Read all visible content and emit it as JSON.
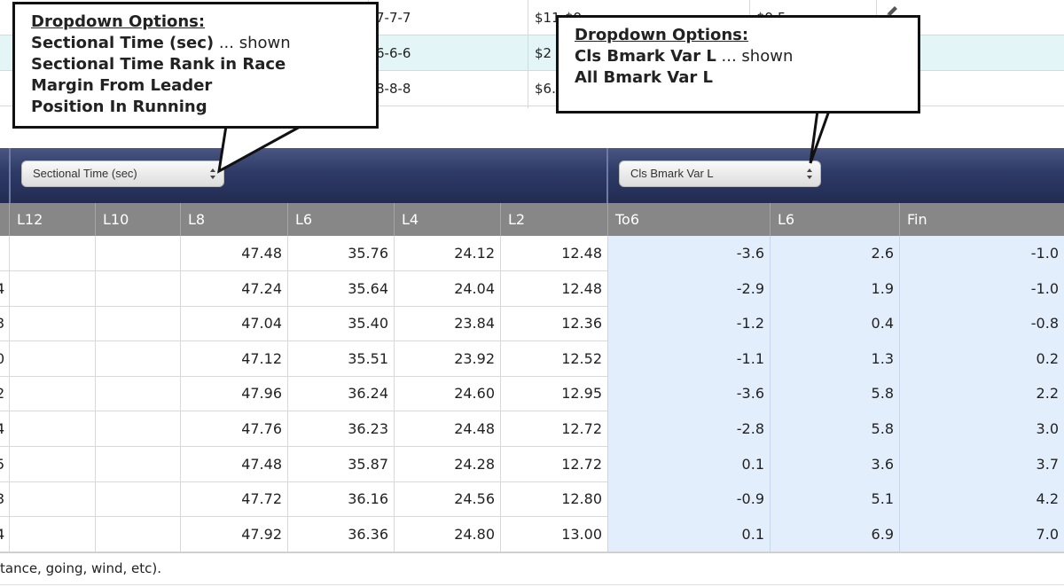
{
  "top_rows": [
    {
      "positions": "7-7-7",
      "odds": "$11-$9",
      "sp": "$9.5"
    },
    {
      "positions": "6-6-6",
      "odds": "$2",
      "sp": ""
    },
    {
      "positions": "8-8-8",
      "odds": "$6.",
      "sp": ""
    }
  ],
  "left_select": {
    "value": "Sectional Time (sec)"
  },
  "right_select": {
    "value": "Cls Bmark Var L"
  },
  "columns": [
    "L12",
    "L10",
    "L8",
    "L6",
    "L4",
    "L2",
    "To6",
    "L6",
    "Fin"
  ],
  "rows": [
    {
      "lead": "",
      "L12": "",
      "L10": "",
      "L8": "47.48",
      "L6": "35.76",
      "L4": "24.12",
      "L2": "12.48",
      "To6": "-3.6",
      "L6b": "2.6",
      "Fin": "-1.0"
    },
    {
      "lead": "4",
      "L12": "",
      "L10": "",
      "L8": "47.24",
      "L6": "35.64",
      "L4": "24.04",
      "L2": "12.48",
      "To6": "-2.9",
      "L6b": "1.9",
      "Fin": "-1.0"
    },
    {
      "lead": "3",
      "L12": "",
      "L10": "",
      "L8": "47.04",
      "L6": "35.40",
      "L4": "23.84",
      "L2": "12.36",
      "To6": "-1.2",
      "L6b": "0.4",
      "Fin": "-0.8"
    },
    {
      "lead": "0",
      "L12": "",
      "L10": "",
      "L8": "47.12",
      "L6": "35.51",
      "L4": "23.92",
      "L2": "12.52",
      "To6": "-1.1",
      "L6b": "1.3",
      "Fin": "0.2"
    },
    {
      "lead": "2",
      "L12": "",
      "L10": "",
      "L8": "47.96",
      "L6": "36.24",
      "L4": "24.60",
      "L2": "12.95",
      "To6": "-3.6",
      "L6b": "5.8",
      "Fin": "2.2"
    },
    {
      "lead": "4",
      "L12": "",
      "L10": "",
      "L8": "47.76",
      "L6": "36.23",
      "L4": "24.48",
      "L2": "12.72",
      "To6": "-2.8",
      "L6b": "5.8",
      "Fin": "3.0"
    },
    {
      "lead": "5",
      "L12": "",
      "L10": "",
      "L8": "47.48",
      "L6": "35.87",
      "L4": "24.28",
      "L2": "12.72",
      "To6": "0.1",
      "L6b": "3.6",
      "Fin": "3.7"
    },
    {
      "lead": "3",
      "L12": "",
      "L10": "",
      "L8": "47.72",
      "L6": "36.16",
      "L4": "24.56",
      "L2": "12.80",
      "To6": "-0.9",
      "L6b": "5.1",
      "Fin": "4.2"
    },
    {
      "lead": "4",
      "L12": "",
      "L10": "",
      "L8": "47.92",
      "L6": "36.36",
      "L4": "24.80",
      "L2": "13.00",
      "To6": "0.1",
      "L6b": "6.9",
      "Fin": "7.0"
    }
  ],
  "footnote": "tance, going, wind, etc).",
  "callout_left": {
    "title": "Dropdown Options:",
    "options": [
      {
        "text": "Sectional Time (sec)",
        "note": " ... shown"
      },
      {
        "text": "Sectional Time Rank in Race",
        "note": ""
      },
      {
        "text": "Margin From Leader",
        "note": ""
      },
      {
        "text": "Position In Running",
        "note": ""
      }
    ]
  },
  "callout_right": {
    "title": "Dropdown Options:",
    "options": [
      {
        "text": "Cls Bmark Var L",
        "note": " ... shown"
      },
      {
        "text": "All Bmark Var L",
        "note": ""
      }
    ]
  },
  "icons": {
    "edit": "pencil-icon",
    "select_arrows": "updown-arrows-icon"
  },
  "colors": {
    "header_band": "#2e3a66",
    "column_header": "#878787",
    "benchmark_cells": "#e3eefc",
    "highlight_row": "#e4f5f7"
  }
}
